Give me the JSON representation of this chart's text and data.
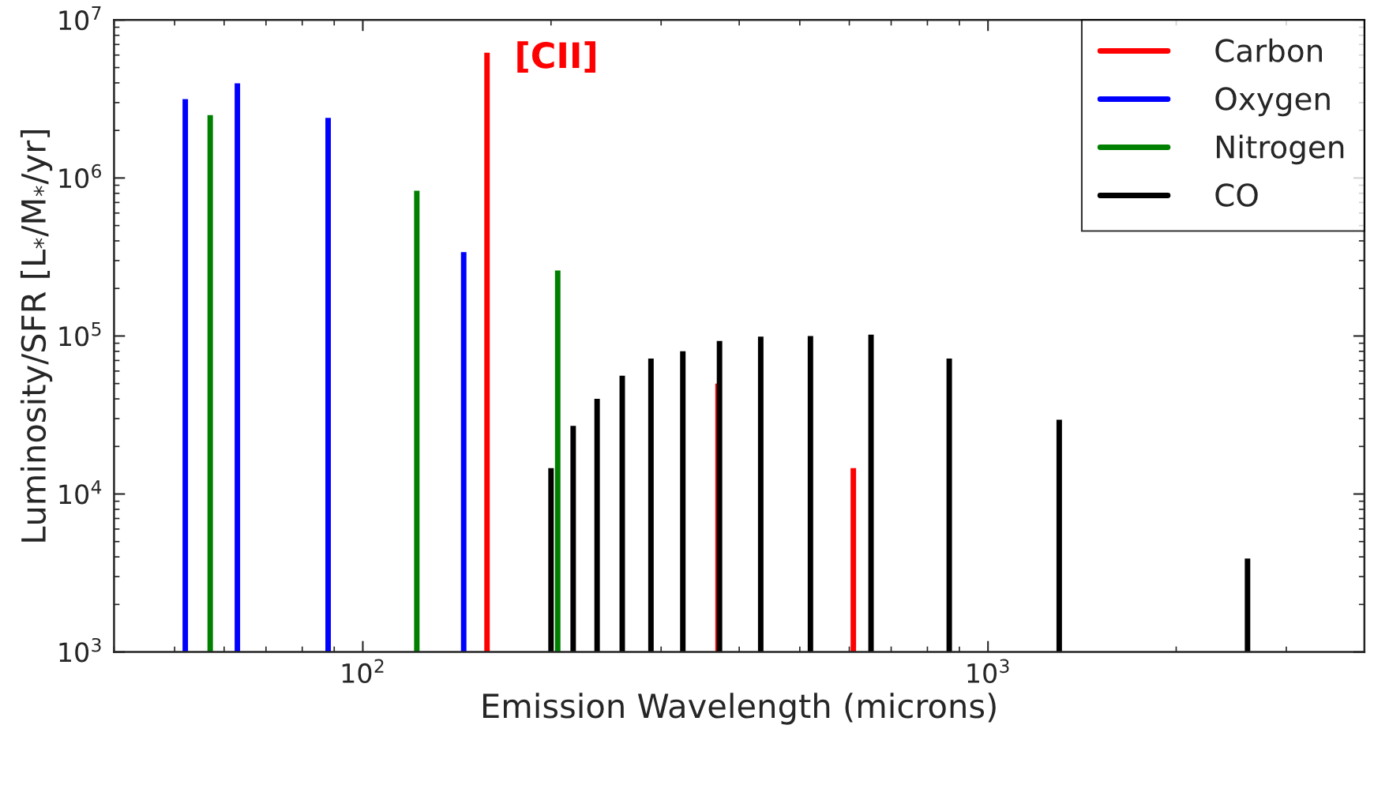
{
  "chart_data": {
    "type": "bar",
    "xlabel": "Emission Wavelength (microns)",
    "ylabel": "Luminosity/SFR [L$_{*}$/M$_{*}$/yr]",
    "log": "xy",
    "xlim": [
      40,
      4000
    ],
    "xticks": [
      {
        "value": 100,
        "label": "10$^{2}$"
      },
      {
        "value": 1000,
        "label": "10$^{3}$"
      }
    ],
    "ylim": [
      1000,
      10000000
    ],
    "yticks": [
      {
        "value": 1000,
        "label": "10$^{3}$"
      },
      {
        "value": 10000,
        "label": "10$^{4}$"
      },
      {
        "value": 100000,
        "label": "10$^{5}$"
      },
      {
        "value": 1000000,
        "label": "10$^{6}$"
      },
      {
        "value": 10000000,
        "label": "10$^{7}$"
      }
    ],
    "grid": false,
    "legend": "top right",
    "series": [
      {
        "name": "Carbon",
        "color": "#ff0000",
        "x": [
          158,
          370,
          609
        ],
        "values": [
          6200000,
          50000,
          14600
        ]
      },
      {
        "name": "Oxygen",
        "color": "#0000ff",
        "x": [
          52,
          63,
          88,
          145
        ],
        "values": [
          3160000,
          3980000,
          2400000,
          340000
        ]
      },
      {
        "name": "Nitrogen",
        "color": "#008000",
        "x": [
          57,
          122,
          205
        ],
        "values": [
          2500000,
          830000,
          260000
        ]
      },
      {
        "name": "CO",
        "color": "#000000",
        "x": [
          200,
          217,
          237,
          260,
          289,
          325,
          372,
          433,
          520,
          650,
          867,
          1300,
          2601
        ],
        "values": [
          14600,
          27000,
          40000,
          56000,
          72000,
          80000,
          93000,
          99000,
          100000,
          102000,
          72000,
          29500,
          3900
        ]
      }
    ],
    "annotations": [
      {
        "text": "[CII]",
        "x": 158,
        "y": 6200000
      }
    ]
  }
}
